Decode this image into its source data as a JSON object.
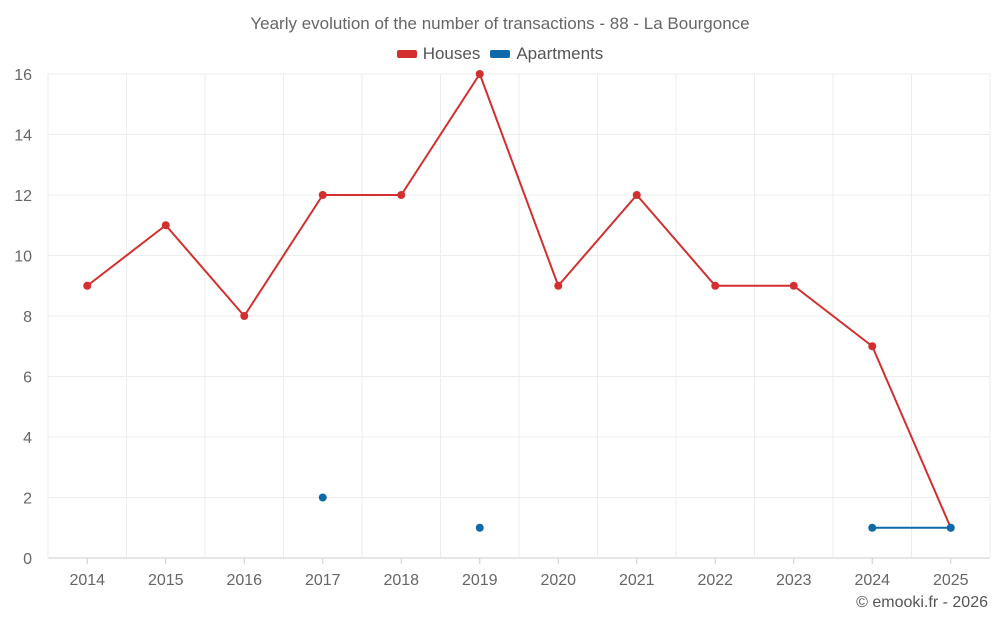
{
  "title": "Yearly evolution of the number of transactions - 88 - La Bourgonce",
  "credit": "© emooki.fr - 2026",
  "chart_data": {
    "type": "line",
    "title": "Yearly evolution of the number of transactions - 88 - La Bourgonce",
    "xlabel": "",
    "ylabel": "",
    "categories": [
      "2014",
      "2015",
      "2016",
      "2017",
      "2018",
      "2019",
      "2020",
      "2021",
      "2022",
      "2023",
      "2024",
      "2025"
    ],
    "ylim": [
      0,
      16
    ],
    "yticks": [
      0,
      2,
      4,
      6,
      8,
      10,
      12,
      14,
      16
    ],
    "grid": true,
    "legend_position": "top-center",
    "series": [
      {
        "name": "Houses",
        "color": "#d32f2f",
        "values": [
          9,
          11,
          8,
          12,
          12,
          16,
          9,
          12,
          9,
          9,
          7,
          1
        ]
      },
      {
        "name": "Apartments",
        "color": "#0d6aa8",
        "values": [
          null,
          null,
          null,
          2,
          null,
          1,
          null,
          null,
          null,
          null,
          1,
          1
        ]
      }
    ]
  }
}
